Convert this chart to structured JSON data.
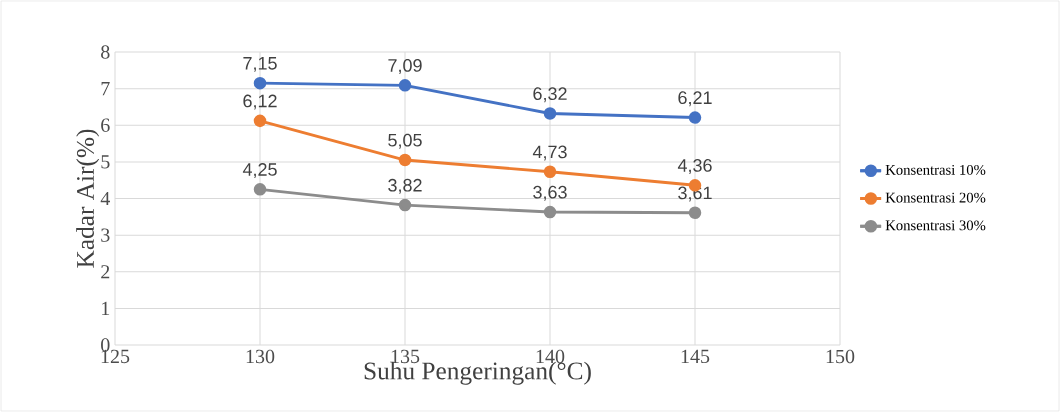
{
  "chart_data": {
    "type": "line",
    "xlabel": "Suhu Pengeringan(°C)",
    "ylabel": "Kadar Air(%)",
    "x": [
      130,
      135,
      140,
      145
    ],
    "series": [
      {
        "name": "Konsentrasi 10%",
        "color": "#4472c4",
        "values": [
          7.15,
          7.09,
          6.32,
          6.21
        ],
        "value_labels": [
          "7,15",
          "7,09",
          "6,32",
          "6,21"
        ]
      },
      {
        "name": "Konsentrasi 20%",
        "color": "#ed7d31",
        "values": [
          6.12,
          5.05,
          4.73,
          4.36
        ],
        "value_labels": [
          "6,12",
          "5,05",
          "4,73",
          "4,36"
        ]
      },
      {
        "name": "Konsentrasi 30%",
        "color": "#8c8c8c",
        "values": [
          4.25,
          3.82,
          3.63,
          3.61
        ],
        "value_labels": [
          "4,25",
          "3,82",
          "3,63",
          "3,61"
        ]
      }
    ],
    "xlim": [
      125,
      150
    ],
    "ylim": [
      0,
      8
    ],
    "xticks": [
      125,
      130,
      135,
      140,
      145,
      150
    ],
    "yticks": [
      0,
      1,
      2,
      3,
      4,
      5,
      6,
      7,
      8
    ],
    "grid": true,
    "legend": "right",
    "marker": "circle",
    "line_style": "solid"
  }
}
